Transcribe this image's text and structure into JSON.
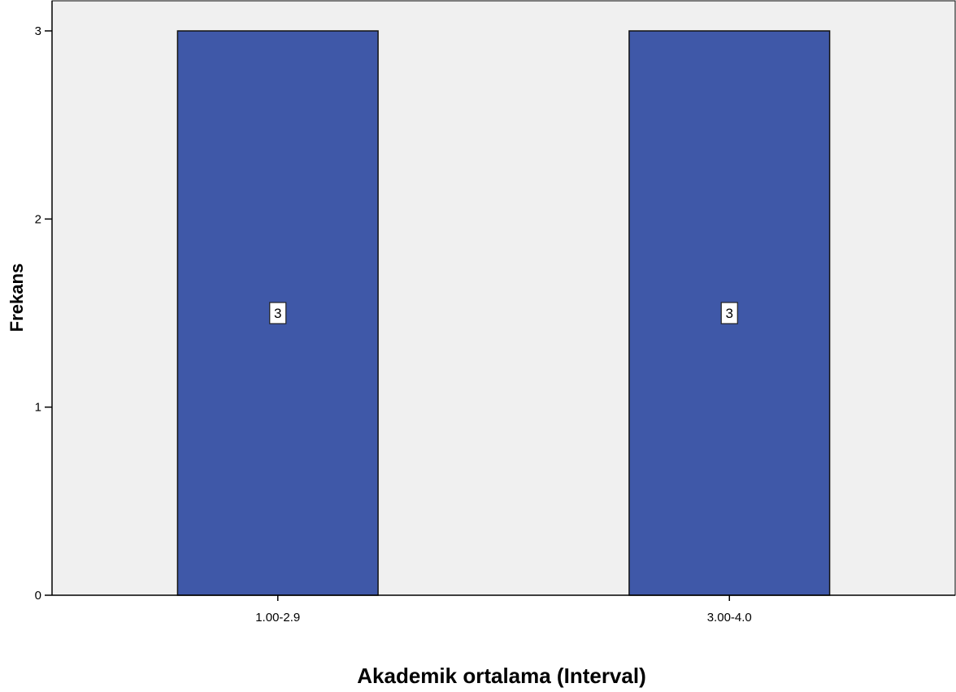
{
  "chart_data": {
    "type": "bar",
    "categories": [
      "1.00-2.9",
      "3.00-4.0"
    ],
    "values": [
      3,
      3
    ],
    "data_labels": [
      "3",
      "3"
    ],
    "title": "",
    "xlabel": "Akademik ortalama (Interval)",
    "ylabel": "Frekans",
    "ylim": [
      0,
      3
    ],
    "yticks": [
      0,
      1,
      2,
      3
    ],
    "grid": false,
    "legend": "none",
    "colors": {
      "bar_fill": "#3f58a8",
      "bar_stroke": "#111111",
      "plot_background": "#f0f0f0",
      "axis": "#000000",
      "label_box": "#ffffff"
    }
  }
}
